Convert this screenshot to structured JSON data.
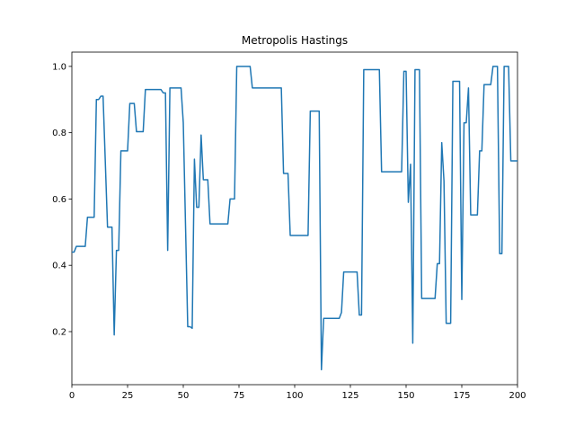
{
  "chart_data": {
    "type": "line",
    "title": "Metropolis Hastings",
    "x": [
      0,
      1,
      2,
      6,
      7,
      10,
      11,
      12,
      13,
      14,
      16,
      18,
      19,
      20,
      21,
      22,
      25,
      26,
      28,
      29,
      32,
      33,
      40,
      41,
      42,
      43,
      44,
      49,
      50,
      52,
      53,
      54,
      55,
      56,
      57,
      58,
      59,
      61,
      62,
      70,
      71,
      73,
      74,
      80,
      81,
      94,
      95,
      97,
      98,
      106,
      107,
      111,
      112,
      113,
      120,
      121,
      122,
      128,
      129,
      130,
      131,
      138,
      139,
      148,
      149,
      150,
      151,
      152,
      153,
      154,
      156,
      157,
      163,
      164,
      165,
      166,
      167,
      168,
      170,
      171,
      174,
      175,
      176,
      177,
      178,
      179,
      182,
      183,
      184,
      185,
      188,
      189,
      191,
      192,
      193,
      194,
      196,
      197,
      200
    ],
    "series": [
      {
        "color": "#1f77b4",
        "values": [
          0.44,
          0.44,
          0.457,
          0.457,
          0.545,
          0.545,
          0.9,
          0.9,
          0.91,
          0.91,
          0.515,
          0.515,
          0.19,
          0.445,
          0.445,
          0.745,
          0.745,
          0.888,
          0.888,
          0.803,
          0.803,
          0.93,
          0.93,
          0.92,
          0.92,
          0.445,
          0.935,
          0.935,
          0.83,
          0.215,
          0.215,
          0.21,
          0.72,
          0.575,
          0.575,
          0.793,
          0.658,
          0.658,
          0.525,
          0.525,
          0.6,
          0.6,
          1.0,
          1.0,
          0.935,
          0.935,
          0.677,
          0.677,
          0.49,
          0.49,
          0.865,
          0.865,
          0.085,
          0.24,
          0.24,
          0.258,
          0.38,
          0.38,
          0.25,
          0.25,
          0.99,
          0.99,
          0.682,
          0.682,
          0.985,
          0.985,
          0.59,
          0.705,
          0.165,
          0.99,
          0.99,
          0.3,
          0.3,
          0.405,
          0.405,
          0.77,
          0.655,
          0.225,
          0.225,
          0.955,
          0.955,
          0.297,
          0.83,
          0.83,
          0.935,
          0.552,
          0.552,
          0.745,
          0.745,
          0.945,
          0.945,
          1.0,
          1.0,
          0.435,
          0.435,
          1.0,
          1.0,
          0.715,
          0.715
        ]
      }
    ],
    "xlim": [
      0,
      200
    ],
    "xticks": [
      0,
      25,
      50,
      75,
      100,
      125,
      150,
      175,
      200
    ],
    "ylim": [
      0.04,
      1.043
    ],
    "yticks": [
      0.2,
      0.4,
      0.6,
      0.8,
      {
        "value": 1,
        "label": "1.0"
      }
    ]
  }
}
